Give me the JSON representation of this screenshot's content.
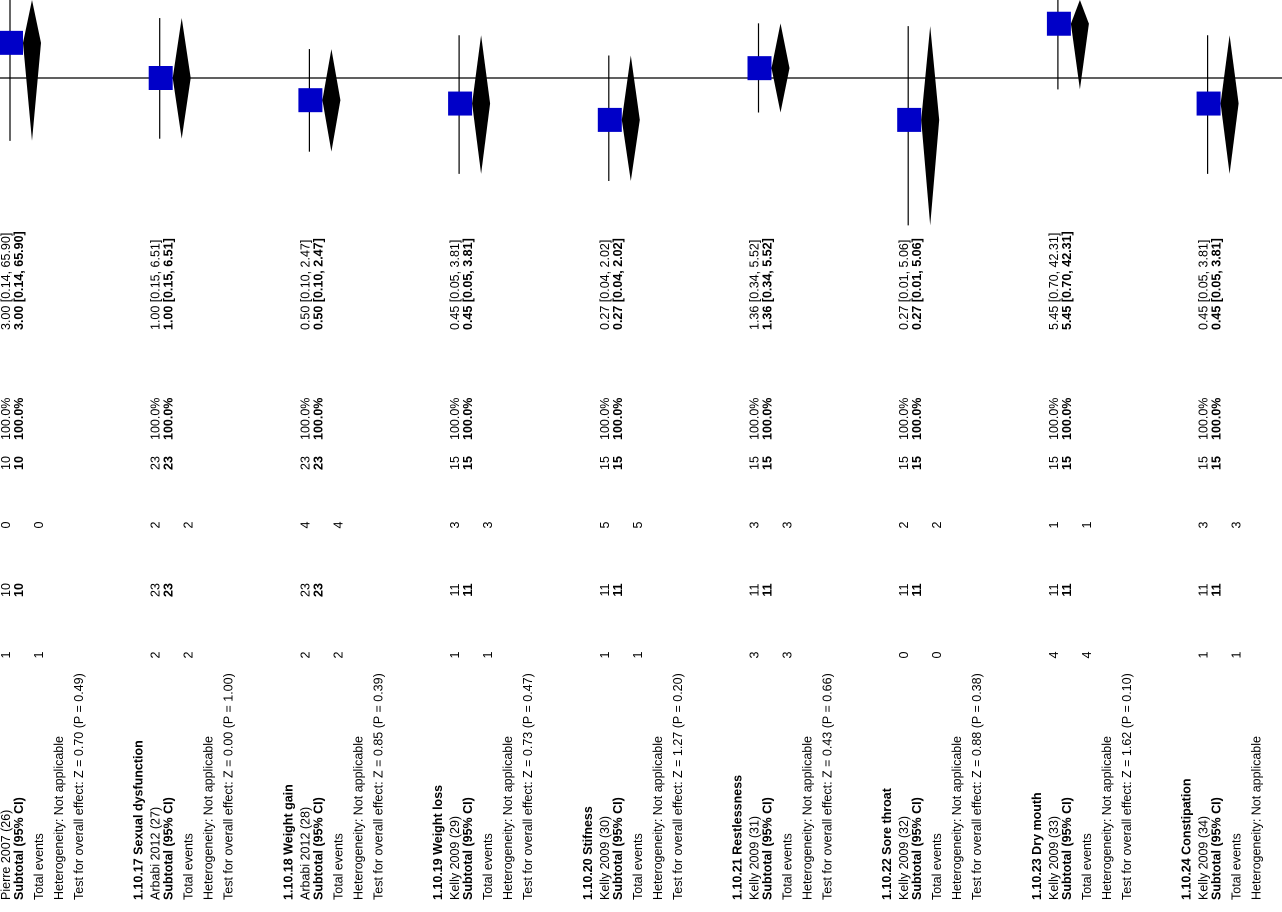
{
  "chart_data": {
    "type": "forest",
    "orientation": "rotated-90-ccw",
    "scale": "log",
    "null_value": 1,
    "subgroups": [
      {
        "heading": "",
        "study": "Pierre 2007 (26)",
        "exp_events": "1",
        "exp_total": "10",
        "ctl_events": "0",
        "ctl_total": "10",
        "weight": "100.0%",
        "effect_text": "3.00 [0.14, 65.90]",
        "subtotal_total_exp": "10",
        "subtotal_total_ctl": "10",
        "subtotal_weight": "100.0%",
        "subtotal_effect_text": "3.00 [0.14, 65.90]",
        "total_events_exp": "1",
        "total_events_ctl": "0",
        "test_overall": "Test for overall effect: Z = 0.70 (P = 0.49)",
        "estimate": 3.0,
        "lower": 0.14,
        "upper": 65.9
      },
      {
        "heading": "1.10.17 Sexual dysfunction",
        "study": "Arbabi 2012 (27)",
        "exp_events": "2",
        "exp_total": "23",
        "ctl_events": "2",
        "ctl_total": "23",
        "weight": "100.0%",
        "effect_text": "1.00 [0.15, 6.51]",
        "subtotal_total_exp": "23",
        "subtotal_total_ctl": "23",
        "subtotal_weight": "100.0%",
        "subtotal_effect_text": "1.00 [0.15, 6.51]",
        "total_events_exp": "2",
        "total_events_ctl": "2",
        "test_overall": "Test for overall effect: Z = 0.00 (P = 1.00)",
        "estimate": 1.0,
        "lower": 0.15,
        "upper": 6.51
      },
      {
        "heading": "1.10.18 Weight gain",
        "study": "Arbabi 2012 (28)",
        "exp_events": "2",
        "exp_total": "23",
        "ctl_events": "4",
        "ctl_total": "23",
        "weight": "100.0%",
        "effect_text": "0.50 [0.10, 2.47]",
        "subtotal_total_exp": "23",
        "subtotal_total_ctl": "23",
        "subtotal_weight": "100.0%",
        "subtotal_effect_text": "0.50 [0.10, 2.47]",
        "total_events_exp": "2",
        "total_events_ctl": "4",
        "test_overall": "Test for overall effect: Z = 0.85 (P = 0.39)",
        "estimate": 0.5,
        "lower": 0.1,
        "upper": 2.47
      },
      {
        "heading": "1.10.19 Weight loss",
        "study": "Kelly 2009 (29)",
        "exp_events": "1",
        "exp_total": "11",
        "ctl_events": "3",
        "ctl_total": "15",
        "weight": "100.0%",
        "effect_text": "0.45 [0.05, 3.81]",
        "subtotal_total_exp": "11",
        "subtotal_total_ctl": "15",
        "subtotal_weight": "100.0%",
        "subtotal_effect_text": "0.45 [0.05, 3.81]",
        "total_events_exp": "1",
        "total_events_ctl": "3",
        "test_overall": "Test for overall effect: Z = 0.73 (P = 0.47)",
        "estimate": 0.45,
        "lower": 0.05,
        "upper": 3.81
      },
      {
        "heading": "1.10.20 Stifness",
        "study": "Kelly 2009 (30)",
        "exp_events": "1",
        "exp_total": "11",
        "ctl_events": "5",
        "ctl_total": "15",
        "weight": "100.0%",
        "effect_text": "0.27 [0.04, 2.02]",
        "subtotal_total_exp": "11",
        "subtotal_total_ctl": "15",
        "subtotal_weight": "100.0%",
        "subtotal_effect_text": "0.27 [0.04, 2.02]",
        "total_events_exp": "1",
        "total_events_ctl": "5",
        "test_overall": "Test for overall effect: Z = 1.27 (P = 0.20)",
        "estimate": 0.27,
        "lower": 0.04,
        "upper": 2.02
      },
      {
        "heading": "1.10.21 Restlessness",
        "study": "Kelly 2009 (31)",
        "exp_events": "3",
        "exp_total": "11",
        "ctl_events": "3",
        "ctl_total": "15",
        "weight": "100.0%",
        "effect_text": "1.36 [0.34, 5.52]",
        "subtotal_total_exp": "11",
        "subtotal_total_ctl": "15",
        "subtotal_weight": "100.0%",
        "subtotal_effect_text": "1.36 [0.34, 5.52]",
        "total_events_exp": "3",
        "total_events_ctl": "3",
        "test_overall": "Test for overall effect: Z = 0.43 (P = 0.66)",
        "estimate": 1.36,
        "lower": 0.34,
        "upper": 5.52
      },
      {
        "heading": "1.10.22 Sore throat",
        "study": "Kelly 2009 (32)",
        "exp_events": "0",
        "exp_total": "11",
        "ctl_events": "2",
        "ctl_total": "15",
        "weight": "100.0%",
        "effect_text": "0.27 [0.01, 5.06]",
        "subtotal_total_exp": "11",
        "subtotal_total_ctl": "15",
        "subtotal_weight": "100.0%",
        "subtotal_effect_text": "0.27 [0.01, 5.06]",
        "total_events_exp": "0",
        "total_events_ctl": "2",
        "test_overall": "Test for overall effect: Z = 0.88 (P = 0.38)",
        "estimate": 0.27,
        "lower": 0.01,
        "upper": 5.06
      },
      {
        "heading": "1.10.23 Dry mouth",
        "study": "Kelly 2009 (33)",
        "exp_events": "4",
        "exp_total": "11",
        "ctl_events": "1",
        "ctl_total": "15",
        "weight": "100.0%",
        "effect_text": "5.45 [0.70, 42.31]",
        "subtotal_total_exp": "11",
        "subtotal_total_ctl": "15",
        "subtotal_weight": "100.0%",
        "subtotal_effect_text": "5.45 [0.70, 42.31]",
        "total_events_exp": "4",
        "total_events_ctl": "1",
        "test_overall": "Test for overall effect: Z = 1.62 (P = 0.10)",
        "estimate": 5.45,
        "lower": 0.7,
        "upper": 42.31
      },
      {
        "heading": "1.10.24 Constipation",
        "study": "Kelly 2009 (34)",
        "exp_events": "1",
        "exp_total": "11",
        "ctl_events": "3",
        "ctl_total": "15",
        "weight": "100.0%",
        "effect_text": "0.45 [0.05, 3.81]",
        "subtotal_total_exp": "11",
        "subtotal_total_ctl": "15",
        "subtotal_weight": "100.0%",
        "subtotal_effect_text": "0.45 [0.05, 3.81]",
        "total_events_exp": "1",
        "total_events_ctl": "3",
        "test_overall": "",
        "estimate": 0.45,
        "lower": 0.05,
        "upper": 3.81
      }
    ],
    "subtotal_label": "Subtotal (95% CI)",
    "total_events_label": "Total events",
    "heterogeneity_label": "Heterogeneity: Not applicable",
    "colors": {
      "square": "#0000c8",
      "diamond": "#000000",
      "line": "#000000"
    }
  }
}
